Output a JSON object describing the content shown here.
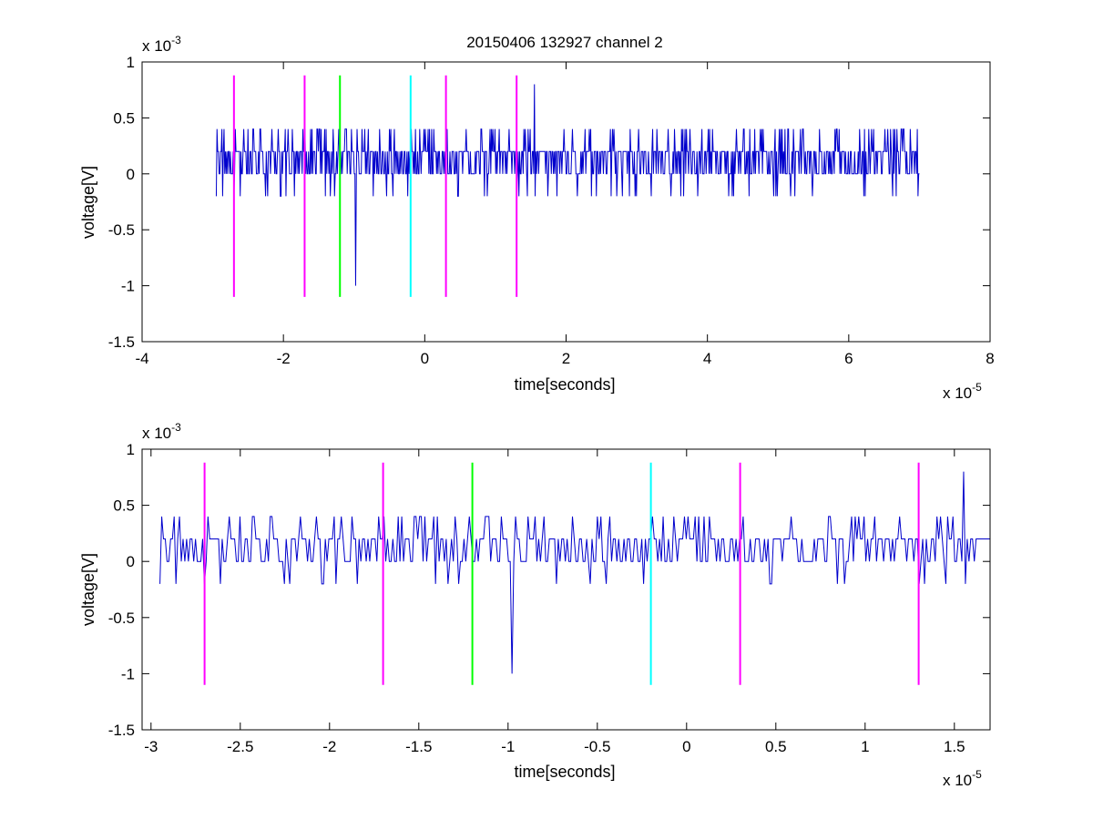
{
  "figure_title": "20150406 132927 channel 2",
  "colors": {
    "signal": "#0000cc",
    "magenta": "#ff00ff",
    "green": "#00ff00",
    "cyan": "#00ffff",
    "axis": "#000000"
  },
  "chart_data": [
    {
      "type": "line",
      "title": "20150406 132927 channel 2",
      "xlabel": "time[seconds]",
      "ylabel": "voltage[V]",
      "x_multiplier": "x 10",
      "x_exponent": "-5",
      "y_multiplier": "x 10",
      "y_exponent": "-3",
      "xlim": [
        -4e-05,
        8e-05
      ],
      "ylim": [
        -0.0015,
        0.001
      ],
      "xticks": [
        -4e-05,
        -2e-05,
        0,
        2e-05,
        4e-05,
        6e-05,
        8e-05
      ],
      "xtick_labels": [
        "-4",
        "-2",
        "0",
        "2",
        "4",
        "6",
        "8"
      ],
      "yticks": [
        0.001,
        0.0005,
        0,
        -0.0005,
        -0.001,
        -0.0015
      ],
      "ytick_labels": [
        "1",
        "0.5",
        "0",
        "-0.5",
        "-1",
        "-1.5"
      ],
      "grid": false,
      "signal": {
        "x_start": -2.95e-05,
        "x_end": 7e-05,
        "levels": [
          -0.0002,
          0,
          0.0002,
          0.0004
        ],
        "spikes": [
          {
            "x": -9.8e-06,
            "y": -0.001
          },
          {
            "x": 1.55e-05,
            "y": 0.0008
          },
          {
            "x": -2.95e-05,
            "y": -0.0002
          }
        ]
      },
      "markers": [
        {
          "x": -2.7e-05,
          "color": "magenta",
          "y_top": 0.00088,
          "y_bottom": -0.0011
        },
        {
          "x": -1.7e-05,
          "color": "magenta",
          "y_top": 0.00088,
          "y_bottom": -0.0011
        },
        {
          "x": -1.2e-05,
          "color": "green",
          "y_top": 0.00088,
          "y_bottom": -0.0011
        },
        {
          "x": -2e-06,
          "color": "cyan",
          "y_top": 0.00088,
          "y_bottom": -0.0011
        },
        {
          "x": 3e-06,
          "color": "magenta",
          "y_top": 0.00088,
          "y_bottom": -0.0011
        },
        {
          "x": 1.3e-05,
          "color": "magenta",
          "y_top": 0.00088,
          "y_bottom": -0.0011
        }
      ]
    },
    {
      "type": "line",
      "title": "",
      "xlabel": "time[seconds]",
      "ylabel": "voltage[V]",
      "x_multiplier": "x 10",
      "x_exponent": "-5",
      "y_multiplier": "x 10",
      "y_exponent": "-3",
      "xlim": [
        -3.05e-05,
        1.7e-05
      ],
      "ylim": [
        -0.0015,
        0.001
      ],
      "xticks": [
        -3e-05,
        -2.5e-05,
        -2e-05,
        -1.5e-05,
        -1e-05,
        -5e-06,
        0,
        5e-06,
        1e-05,
        1.5e-05
      ],
      "xtick_labels": [
        "-3",
        "-2.5",
        "-2",
        "-1.5",
        "-1",
        "-0.5",
        "0",
        "0.5",
        "1",
        "1.5"
      ],
      "yticks": [
        0.001,
        0.0005,
        0,
        -0.0005,
        -0.001,
        -0.0015
      ],
      "ytick_labels": [
        "1",
        "0.5",
        "0",
        "-0.5",
        "-1",
        "-1.5"
      ],
      "grid": false,
      "signal": {
        "x_start": -2.95e-05,
        "x_end": 1.7e-05,
        "levels": [
          -0.0002,
          0,
          0.0002,
          0.0004
        ],
        "spikes": [
          {
            "x": -9.8e-06,
            "y": -0.001
          },
          {
            "x": 1.55e-05,
            "y": 0.0008
          },
          {
            "x": -2.95e-05,
            "y": -0.0002
          }
        ]
      },
      "markers": [
        {
          "x": -2.7e-05,
          "color": "magenta",
          "y_top": 0.00088,
          "y_bottom": -0.0011
        },
        {
          "x": -1.7e-05,
          "color": "magenta",
          "y_top": 0.00088,
          "y_bottom": -0.0011
        },
        {
          "x": -1.2e-05,
          "color": "green",
          "y_top": 0.00088,
          "y_bottom": -0.0011
        },
        {
          "x": -2e-06,
          "color": "cyan",
          "y_top": 0.00088,
          "y_bottom": -0.0011
        },
        {
          "x": 3e-06,
          "color": "magenta",
          "y_top": 0.00088,
          "y_bottom": -0.0011
        },
        {
          "x": 1.3e-05,
          "color": "magenta",
          "y_top": 0.00088,
          "y_bottom": -0.0011
        }
      ]
    }
  ]
}
